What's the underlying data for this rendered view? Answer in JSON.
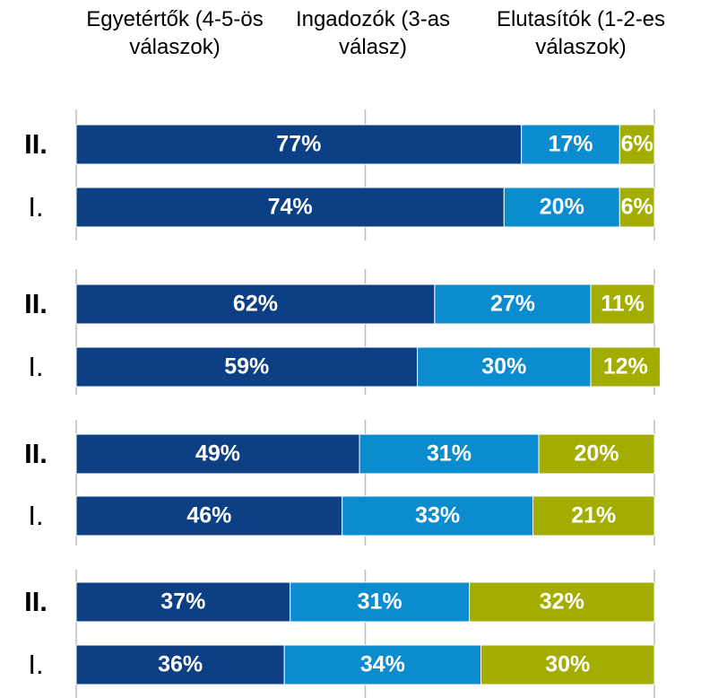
{
  "chart_data": {
    "type": "stacked-barh",
    "categories": [
      "II.",
      "I.",
      "II.",
      "I.",
      "II.",
      "I.",
      "II.",
      "I."
    ],
    "series": [
      {
        "name": "Egyetértők (4-5-ös válaszok)",
        "color": "#0c3f84",
        "values": [
          77,
          74,
          62,
          59,
          49,
          46,
          37,
          36
        ],
        "value_labels": [
          "77%",
          "74%",
          "62%",
          "59%",
          "49%",
          "46%",
          "37%",
          "36%"
        ]
      },
      {
        "name": "Ingadozók (3-as válasz)",
        "color": "#0b8ccf",
        "values": [
          17,
          20,
          27,
          30,
          31,
          33,
          31,
          34
        ],
        "value_labels": [
          "17%",
          "20%",
          "27%",
          "30%",
          "31%",
          "33%",
          "31%",
          "34%"
        ]
      },
      {
        "name": "Elutasítók (1-2-es válaszok)",
        "color": "#a3ad00",
        "values": [
          6,
          6,
          11,
          12,
          20,
          21,
          32,
          30
        ],
        "value_labels": [
          "6%",
          "6%",
          "11%",
          "12%",
          "20%",
          "21%",
          "32%",
          "30%"
        ]
      }
    ],
    "xlim": [
      0,
      100
    ],
    "xticks": [
      0,
      50,
      100
    ],
    "grid": true
  }
}
